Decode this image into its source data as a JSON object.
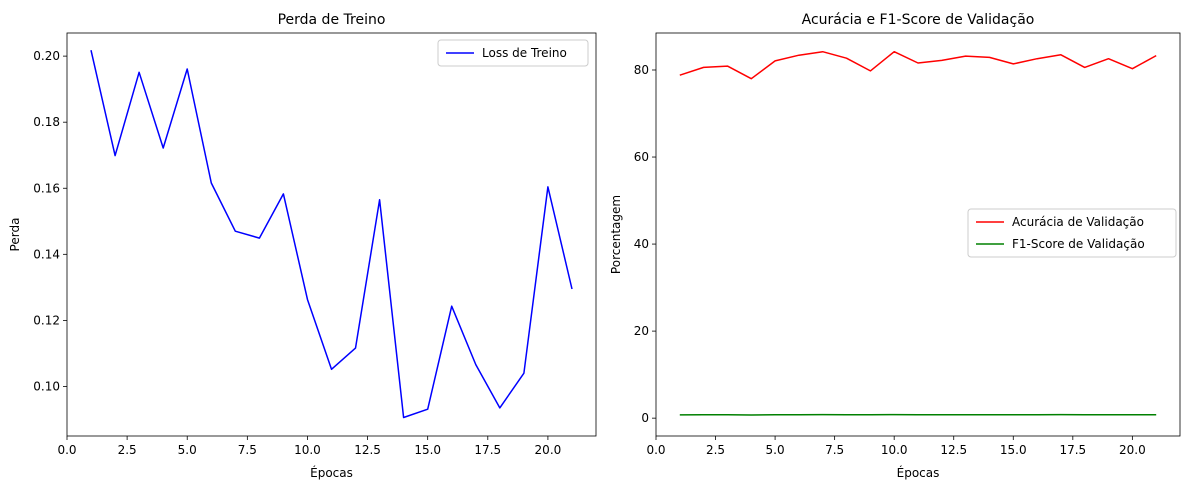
{
  "chart_data": [
    {
      "type": "line",
      "title": "Perda de Treino",
      "xlabel": "Épocas",
      "ylabel": "Perda",
      "xlim": [
        0,
        22.0
      ],
      "ylim": [
        0.085,
        0.207
      ],
      "xticks": [
        "0.0",
        "2.5",
        "5.0",
        "7.5",
        "10.0",
        "12.5",
        "15.0",
        "17.5",
        "20.0"
      ],
      "yticks": [
        "0.10",
        "0.12",
        "0.14",
        "0.16",
        "0.18",
        "0.20"
      ],
      "grid": false,
      "legend_position": "upper-right",
      "x": [
        1,
        2,
        3,
        4,
        5,
        6,
        7,
        8,
        9,
        10,
        11,
        12,
        13,
        14,
        15,
        16,
        17,
        18,
        19,
        20,
        21
      ],
      "series": [
        {
          "name": "Loss de Treino",
          "color": "#0000ff",
          "values": [
            0.2018,
            0.1699,
            0.1951,
            0.1722,
            0.1961,
            0.1616,
            0.147,
            0.1449,
            0.1583,
            0.1263,
            0.1052,
            0.1116,
            0.1565,
            0.0906,
            0.0931,
            0.1243,
            0.1066,
            0.0935,
            0.104,
            0.1604,
            0.1295
          ]
        }
      ]
    },
    {
      "type": "line",
      "title": "Acurácia e F1-Score de Validação",
      "xlabel": "Épocas",
      "ylabel": "Porcentagem",
      "xlim": [
        0,
        22.0
      ],
      "ylim": [
        -4.1,
        88.5
      ],
      "xticks": [
        "0.0",
        "2.5",
        "5.0",
        "7.5",
        "10.0",
        "12.5",
        "15.0",
        "17.5",
        "20.0"
      ],
      "yticks": [
        "0",
        "20",
        "40",
        "60",
        "80"
      ],
      "grid": false,
      "legend_position": "center-right",
      "x": [
        1,
        2,
        3,
        4,
        5,
        6,
        7,
        8,
        9,
        10,
        11,
        12,
        13,
        14,
        15,
        16,
        17,
        18,
        19,
        20,
        21
      ],
      "series": [
        {
          "name": "Acurácia de Validação",
          "color": "#ff0000",
          "values": [
            78.8,
            80.6,
            80.9,
            78.0,
            82.1,
            83.4,
            84.2,
            82.7,
            79.8,
            84.2,
            81.6,
            82.2,
            83.2,
            82.9,
            81.4,
            82.6,
            83.5,
            80.6,
            82.6,
            80.3,
            83.3
          ]
        },
        {
          "name": "F1-Score de Validação",
          "color": "#008000",
          "values": [
            0.75,
            0.78,
            0.78,
            0.73,
            0.8,
            0.8,
            0.82,
            0.8,
            0.76,
            0.82,
            0.79,
            0.79,
            0.8,
            0.8,
            0.79,
            0.8,
            0.81,
            0.78,
            0.8,
            0.77,
            0.8
          ]
        }
      ]
    }
  ]
}
